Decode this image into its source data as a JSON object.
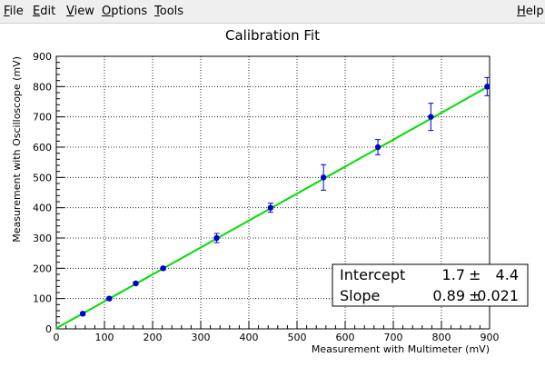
{
  "menubar": {
    "items": [
      {
        "mnemonic": "F",
        "rest": "ile"
      },
      {
        "mnemonic": "E",
        "rest": "dit"
      },
      {
        "mnemonic": "V",
        "rest": "iew"
      },
      {
        "mnemonic": "O",
        "rest": "ptions"
      },
      {
        "mnemonic": "T",
        "rest": "ools"
      }
    ],
    "help": {
      "mnemonic": "H",
      "rest": "elp"
    }
  },
  "chart_data": {
    "type": "scatter",
    "title": "Calibration Fit",
    "xlabel": "Measurement with Multimeter (mV)",
    "ylabel": "Measurement with Oscilloscope (mV)",
    "xlim": [
      0,
      900
    ],
    "ylim": [
      0,
      900
    ],
    "xticks": [
      0,
      100,
      200,
      300,
      400,
      500,
      600,
      700,
      800,
      900
    ],
    "yticks": [
      0,
      100,
      200,
      300,
      400,
      500,
      600,
      700,
      800,
      900
    ],
    "grid": true,
    "points": [
      {
        "x": 55,
        "y": 50,
        "yerr": 5
      },
      {
        "x": 110,
        "y": 100,
        "yerr": 5
      },
      {
        "x": 165,
        "y": 150,
        "yerr": 5
      },
      {
        "x": 222,
        "y": 200,
        "yerr": 5
      },
      {
        "x": 333,
        "y": 300,
        "yerr": 15
      },
      {
        "x": 445,
        "y": 400,
        "yerr": 15
      },
      {
        "x": 555,
        "y": 500,
        "yerr": 42
      },
      {
        "x": 668,
        "y": 600,
        "yerr": 25
      },
      {
        "x": 778,
        "y": 700,
        "yerr": 45
      },
      {
        "x": 895,
        "y": 800,
        "yerr": 30
      }
    ],
    "fit": {
      "intercept": 1.7,
      "slope": 0.89
    },
    "colors": {
      "points": "#0000cc",
      "fit": "#00dd00"
    },
    "fit_box": {
      "rows": [
        {
          "label": "Intercept",
          "value": "1.7",
          "error": "4.4"
        },
        {
          "label": "Slope",
          "value": "0.89",
          "error": "0.021"
        }
      ],
      "pm": "±"
    }
  }
}
